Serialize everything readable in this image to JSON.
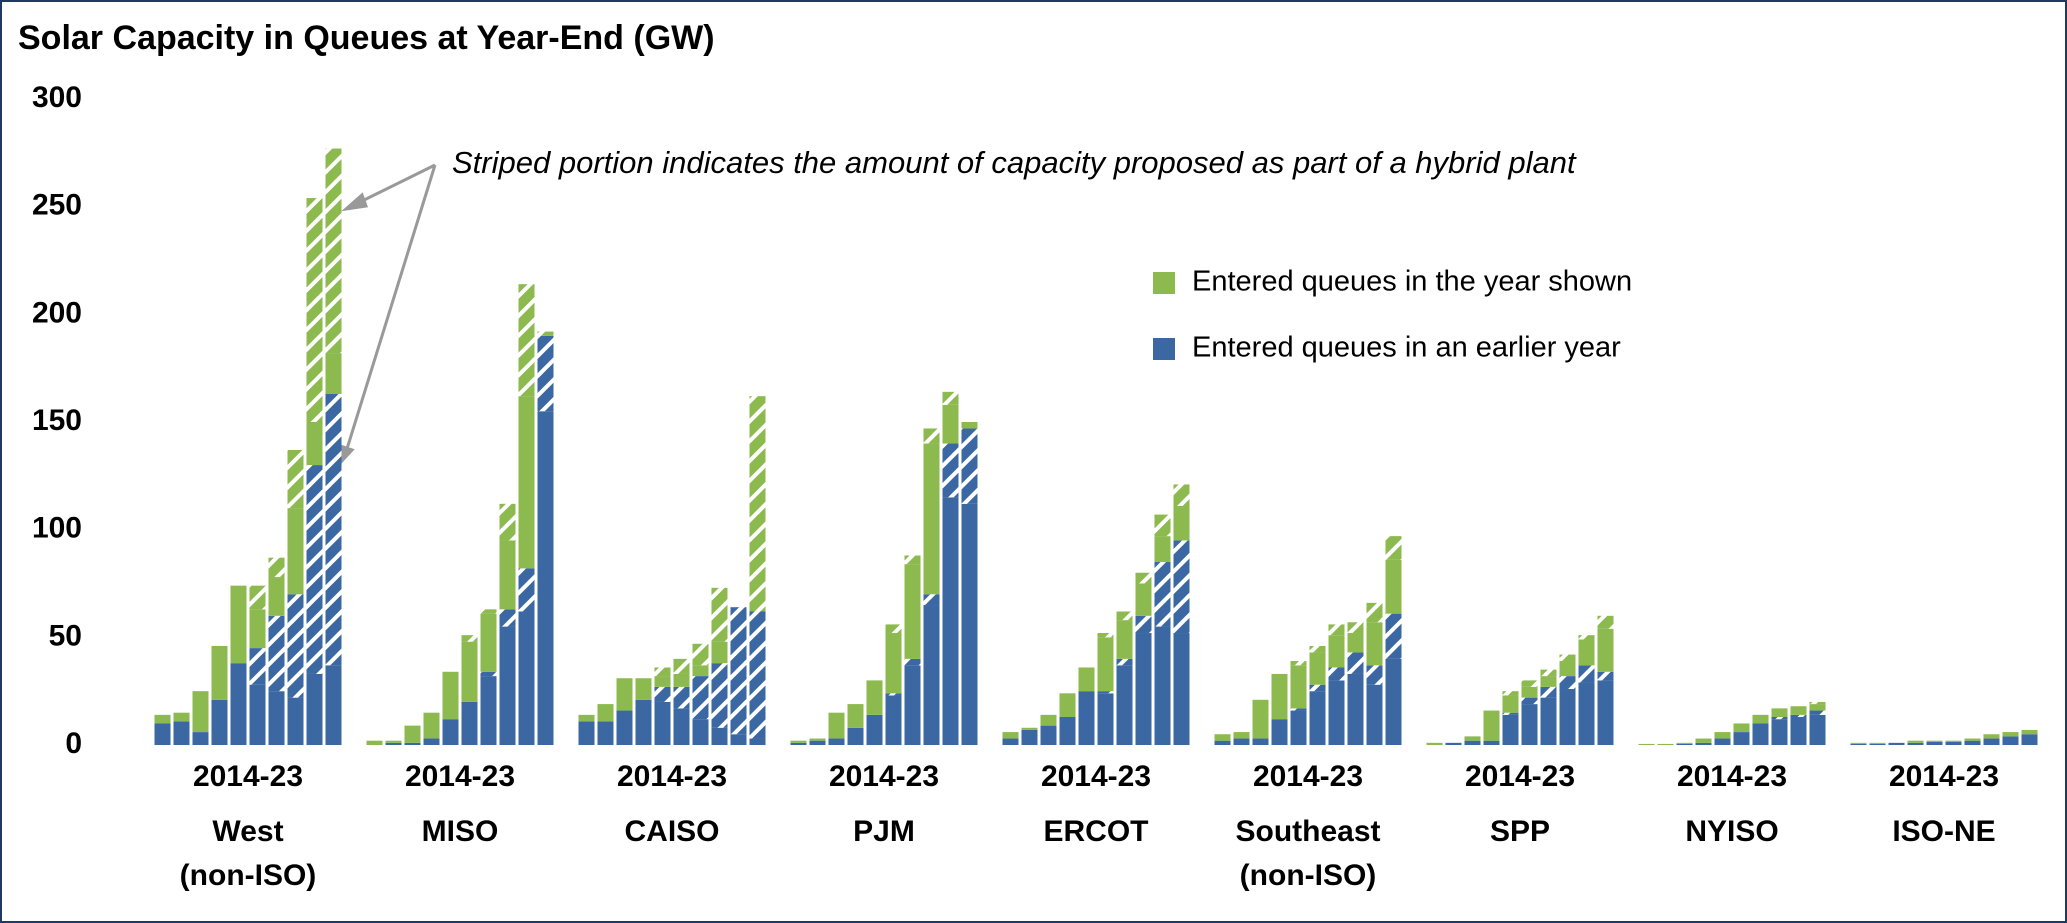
{
  "chart_data": {
    "type": "stacked_grouped_bar",
    "title": "Solar Capacity in Queues at Year-End (GW)",
    "annotation": "Striped portion indicates the amount of capacity proposed as part of a hybrid plant",
    "ylim": [
      0,
      300
    ],
    "yticks": [
      0,
      50,
      100,
      150,
      200,
      250,
      300
    ],
    "groups": [
      {
        "name": [
          "West",
          "(non-ISO)"
        ],
        "period": "2014-23"
      },
      {
        "name": [
          "MISO"
        ],
        "period": "2014-23"
      },
      {
        "name": [
          "CAISO"
        ],
        "period": "2014-23"
      },
      {
        "name": [
          "PJM"
        ],
        "period": "2014-23"
      },
      {
        "name": [
          "ERCOT"
        ],
        "period": "2014-23"
      },
      {
        "name": [
          "Southeast",
          "(non-ISO)"
        ],
        "period": "2014-23"
      },
      {
        "name": [
          "SPP"
        ],
        "period": "2014-23"
      },
      {
        "name": [
          "NYISO"
        ],
        "period": "2014-23"
      },
      {
        "name": [
          "ISO-NE"
        ],
        "period": "2014-23"
      }
    ],
    "series": [
      {
        "name": "Entered queues in an earlier year",
        "color": "#3b68a3",
        "values": [
          [
            10,
            11,
            6,
            21,
            38,
            28,
            25,
            22,
            33,
            37
          ],
          [
            0,
            1,
            1,
            3,
            12,
            20,
            32,
            55,
            62,
            155
          ],
          [
            11,
            11,
            16,
            21,
            20,
            17,
            12,
            8,
            5,
            3
          ],
          [
            1,
            2,
            3,
            8,
            14,
            23,
            37,
            65,
            115,
            112
          ],
          [
            3,
            7,
            9,
            13,
            25,
            24,
            37,
            52,
            55,
            52
          ],
          [
            2,
            3,
            3,
            12,
            16,
            25,
            30,
            33,
            28,
            40
          ],
          [
            0,
            1,
            2,
            2,
            14,
            19,
            22,
            26,
            29,
            30
          ],
          [
            0,
            0,
            0.5,
            1,
            3,
            6,
            10,
            12,
            13,
            14
          ],
          [
            0.5,
            0.5,
            1,
            1,
            1.5,
            1.5,
            2,
            3,
            4,
            5
          ]
        ],
        "hybrid_values": [
          [
            0,
            0,
            0,
            0,
            0,
            17,
            35,
            48,
            97,
            126
          ],
          [
            0,
            0,
            0,
            0,
            0,
            0,
            2,
            8,
            20,
            35
          ],
          [
            0,
            0,
            0,
            0,
            7,
            10,
            20,
            30,
            59,
            59
          ],
          [
            0,
            0,
            0,
            0,
            0,
            1,
            3,
            5,
            25,
            35
          ],
          [
            0,
            0,
            0,
            0,
            0,
            1,
            3,
            8,
            30,
            43
          ],
          [
            0,
            0,
            0,
            0,
            1,
            3,
            6,
            10,
            9,
            21
          ],
          [
            0,
            0,
            0,
            0,
            1,
            3,
            5,
            6,
            8,
            4
          ],
          [
            0,
            0,
            0,
            0,
            0,
            0,
            0,
            1,
            1,
            2
          ],
          [
            0,
            0,
            0,
            0,
            0,
            0,
            0,
            0,
            0,
            0
          ]
        ]
      },
      {
        "name": "Entered queues in the year shown",
        "color": "#8cba4f",
        "values": [
          [
            4,
            4,
            19,
            25,
            36,
            18,
            18,
            40,
            20,
            19
          ],
          [
            2,
            1,
            8,
            12,
            22,
            28,
            27,
            32,
            80,
            0
          ],
          [
            3,
            8,
            15,
            10,
            5,
            6,
            5,
            10,
            0,
            0
          ],
          [
            1,
            1,
            12,
            11,
            16,
            28,
            44,
            70,
            18,
            3
          ],
          [
            3,
            1,
            5,
            11,
            11,
            25,
            18,
            15,
            12,
            16
          ],
          [
            3,
            3,
            18,
            21,
            20,
            15,
            15,
            9,
            20,
            25
          ],
          [
            1,
            0,
            2,
            14,
            8,
            5,
            5,
            7,
            12,
            20
          ],
          [
            0.5,
            0.5,
            0.5,
            2,
            3,
            4,
            4,
            4,
            4,
            3
          ],
          [
            0.5,
            0.5,
            0,
            1,
            0.5,
            0.5,
            1,
            2,
            2,
            2
          ]
        ],
        "hybrid_values": [
          [
            0,
            0,
            0,
            0,
            0,
            11,
            9,
            27,
            104,
            95
          ],
          [
            0,
            0,
            0,
            0,
            0,
            3,
            2,
            17,
            52,
            2
          ],
          [
            0,
            0,
            0,
            0,
            4,
            7,
            10,
            25,
            0,
            100
          ],
          [
            0,
            0,
            0,
            0,
            0,
            4,
            4,
            7,
            6,
            0
          ],
          [
            0,
            0,
            0,
            0,
            0,
            2,
            4,
            5,
            10,
            10
          ],
          [
            0,
            0,
            0,
            0,
            2,
            3,
            5,
            5,
            9,
            11
          ],
          [
            0,
            0,
            0,
            0,
            2,
            3,
            3,
            3,
            2,
            6
          ],
          [
            0,
            0,
            0,
            0,
            0,
            0,
            0,
            0,
            0,
            1
          ],
          [
            0,
            0,
            0,
            0,
            0,
            0,
            0,
            0,
            0,
            0
          ]
        ]
      }
    ]
  }
}
